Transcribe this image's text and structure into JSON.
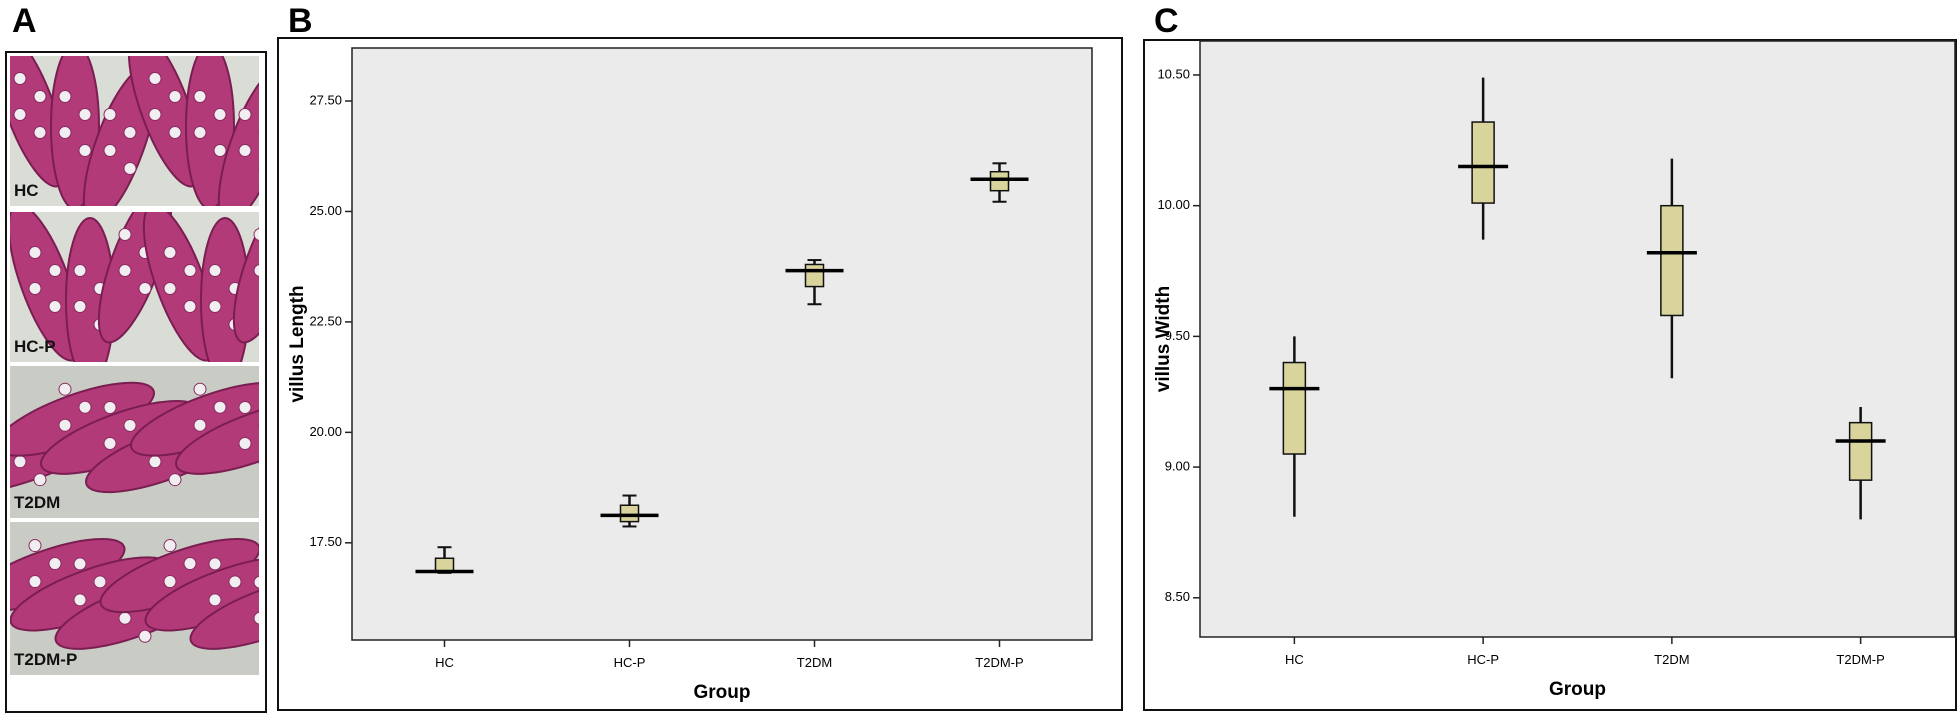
{
  "panel_a": {
    "label": "A",
    "images": [
      "HC",
      "HC-P",
      "T2DM",
      "T2DM-P"
    ]
  },
  "chart_data": [
    {
      "type": "box",
      "panel_label": "B",
      "x_label": "Group",
      "y_label": "villus Length",
      "categories": [
        "HC",
        "HC-P",
        "T2DM",
        "T2DM-P"
      ],
      "boxes": [
        {
          "min": 16.82,
          "q1": 16.84,
          "median": 16.85,
          "q3": 17.15,
          "max": 17.4
        },
        {
          "min": 17.87,
          "q1": 17.98,
          "median": 18.12,
          "q3": 18.35,
          "max": 18.57
        },
        {
          "min": 22.9,
          "q1": 23.3,
          "median": 23.66,
          "q3": 23.8,
          "max": 23.9
        },
        {
          "min": 25.22,
          "q1": 25.47,
          "median": 25.73,
          "q3": 25.9,
          "max": 26.09
        }
      ],
      "color": "#d9d49c",
      "background": "#ebebeb",
      "ylim": [
        15.3,
        28.7
      ],
      "yticks": [
        {
          "value": 17.5,
          "label": "17.50"
        },
        {
          "value": 20,
          "label": "20.00"
        },
        {
          "value": 22.5,
          "label": "22.50"
        },
        {
          "value": 25,
          "label": "25.00"
        },
        {
          "value": 27.5,
          "label": "27.50"
        }
      ],
      "grid": false
    },
    {
      "type": "box",
      "panel_label": "C",
      "x_label": "Group",
      "y_label": "villus Width",
      "categories": [
        "HC",
        "HC-P",
        "T2DM",
        "T2DM-P"
      ],
      "boxes": [
        {
          "min": 8.81,
          "q1": 9.05,
          "median": 9.3,
          "q3": 9.4,
          "max": 9.5
        },
        {
          "min": 9.87,
          "q1": 10.01,
          "median": 10.15,
          "q3": 10.32,
          "max": 10.49
        },
        {
          "min": 9.34,
          "q1": 9.58,
          "median": 9.82,
          "q3": 10.0,
          "max": 10.18
        },
        {
          "min": 8.8,
          "q1": 8.95,
          "median": 9.1,
          "q3": 9.17,
          "max": 9.23
        }
      ],
      "color": "#d9d49c",
      "background": "#ebebeb",
      "ylim": [
        8.35,
        10.63
      ],
      "yticks": [
        {
          "value": 8.5,
          "label": "8.50"
        },
        {
          "value": 9,
          "label": "9.00"
        },
        {
          "value": 9.5,
          "label": "9.50"
        },
        {
          "value": 10,
          "label": "10.00"
        },
        {
          "value": 10.5,
          "label": "10.50"
        }
      ],
      "grid": false
    }
  ]
}
